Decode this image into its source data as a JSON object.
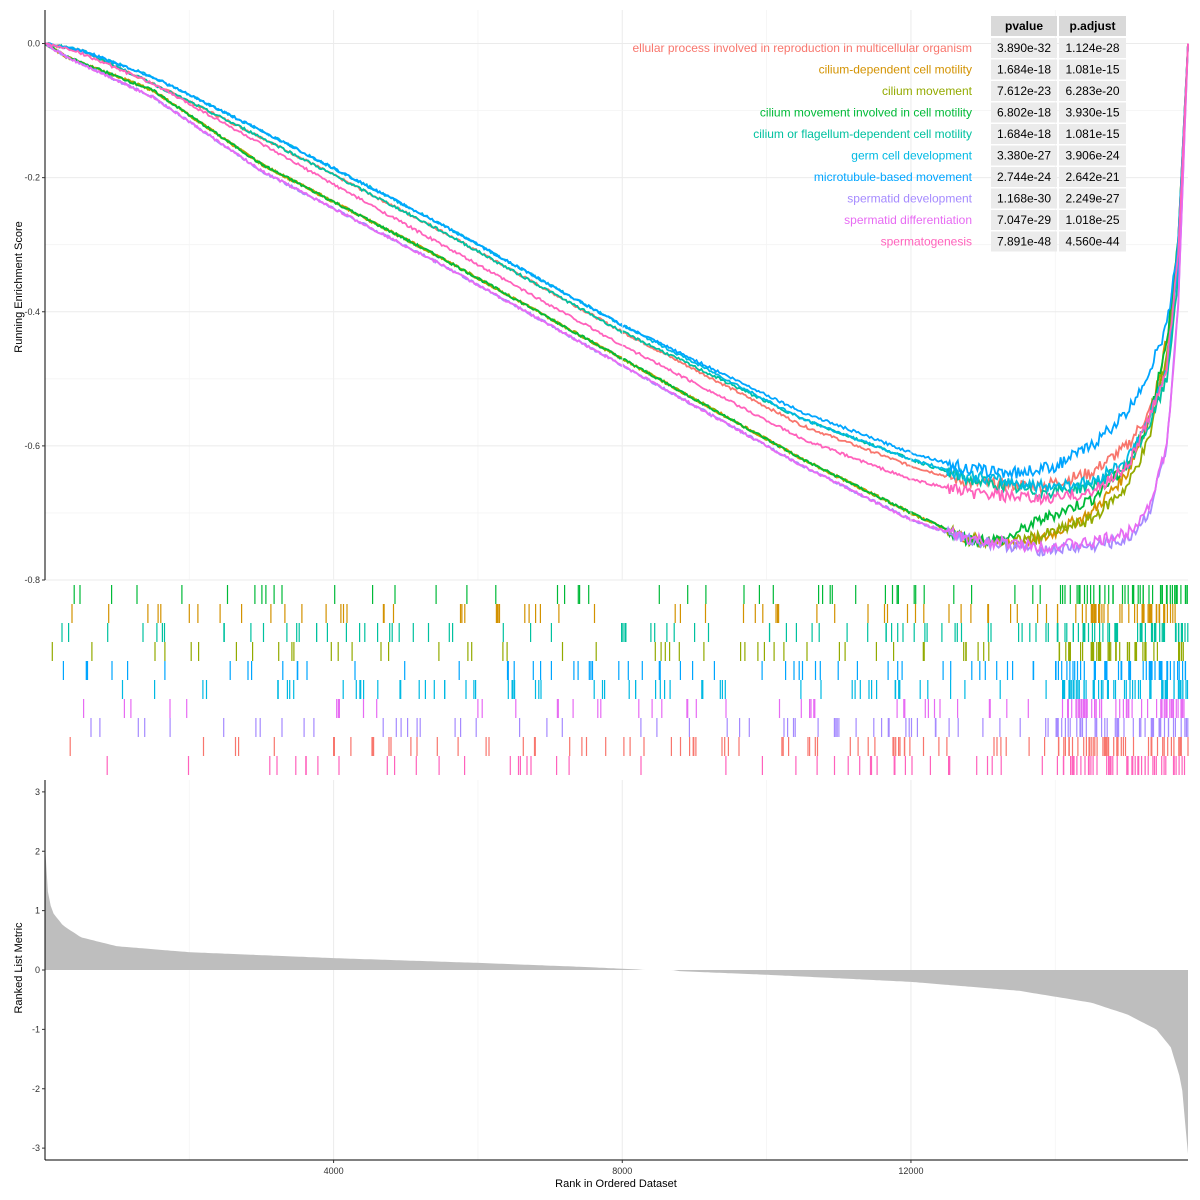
{
  "chart_data": [
    {
      "type": "line",
      "panel": "running-enrichment-score",
      "ylabel": "Running Enrichment Score",
      "xlim": [
        1,
        15839
      ],
      "ylim": [
        -0.8,
        0.05
      ],
      "x_ticks": [
        4000,
        8000,
        12000
      ],
      "x_tick_labels": [
        "4000",
        "8000",
        "12000"
      ],
      "y_ticks": [
        0.0,
        -0.2,
        -0.4,
        -0.6,
        -0.8
      ],
      "y_tick_labels": [
        "0.0",
        "-0.2",
        "-0.4",
        "-0.6",
        "-0.8"
      ],
      "grid": true,
      "legend_position": "top-right",
      "table_headers": [
        "pvalue",
        "p.adjust"
      ],
      "series": [
        {
          "name": "cellular process involved in reproduction in multicellular organism",
          "legend_text": "ellular process involved in reproduction in multicellular organism",
          "color": "#F8766D",
          "pvalue": "3.890e-32",
          "p_adjust": "1.124e-28",
          "x": [
            0,
            500,
            1500,
            3000,
            5500,
            8000,
            10500,
            12000,
            12800,
            13800,
            14500,
            15000,
            15300,
            15550,
            15700,
            15839
          ],
          "y": [
            0.0,
            -0.01,
            -0.06,
            -0.14,
            -0.28,
            -0.43,
            -0.57,
            -0.63,
            -0.655,
            -0.66,
            -0.64,
            -0.6,
            -0.55,
            -0.48,
            -0.33,
            0.0
          ]
        },
        {
          "name": "cilium-dependent cell motility",
          "color": "#D39200",
          "pvalue": "1.684e-18",
          "p_adjust": "1.081e-15",
          "x": [
            0,
            300,
            1500,
            3000,
            5500,
            8000,
            10500,
            12000,
            12800,
            13300,
            13800,
            14500,
            15000,
            15300,
            15550,
            15700,
            15839
          ],
          "y": [
            0.0,
            -0.02,
            -0.07,
            -0.18,
            -0.32,
            -0.47,
            -0.62,
            -0.7,
            -0.74,
            -0.745,
            -0.74,
            -0.7,
            -0.64,
            -0.56,
            -0.44,
            -0.3,
            0.0
          ]
        },
        {
          "name": "cilium movement",
          "color": "#93AA00",
          "pvalue": "7.612e-23",
          "p_adjust": "6.283e-20",
          "x": [
            0,
            300,
            1500,
            3000,
            5500,
            8000,
            10500,
            12000,
            12800,
            13300,
            13800,
            14500,
            15000,
            15300,
            15550,
            15700,
            15839
          ],
          "y": [
            0.0,
            -0.02,
            -0.07,
            -0.18,
            -0.32,
            -0.47,
            -0.62,
            -0.7,
            -0.74,
            -0.745,
            -0.735,
            -0.71,
            -0.66,
            -0.59,
            -0.46,
            -0.32,
            0.0
          ]
        },
        {
          "name": "cilium movement involved in cell motility",
          "color": "#00BA38",
          "pvalue": "6.802e-18",
          "p_adjust": "3.930e-15",
          "x": [
            0,
            300,
            1500,
            3000,
            5500,
            8000,
            10500,
            12000,
            12800,
            13300,
            13800,
            14500,
            15000,
            15300,
            15550,
            15700,
            15839
          ],
          "y": [
            0.0,
            -0.02,
            -0.07,
            -0.18,
            -0.32,
            -0.47,
            -0.62,
            -0.7,
            -0.74,
            -0.74,
            -0.71,
            -0.68,
            -0.63,
            -0.56,
            -0.44,
            -0.3,
            0.0
          ]
        },
        {
          "name": "cilium or flagellum-dependent cell motility",
          "color": "#00C19F",
          "pvalue": "1.684e-18",
          "p_adjust": "1.081e-15",
          "x": [
            0,
            500,
            1500,
            3000,
            5500,
            8000,
            10500,
            12000,
            12800,
            13800,
            14500,
            15000,
            15300,
            15550,
            15700,
            15839
          ],
          "y": [
            0.0,
            -0.01,
            -0.06,
            -0.14,
            -0.28,
            -0.43,
            -0.56,
            -0.62,
            -0.65,
            -0.67,
            -0.66,
            -0.63,
            -0.57,
            -0.5,
            -0.35,
            0.0
          ]
        },
        {
          "name": "germ cell development",
          "color": "#00B9E3",
          "pvalue": "3.380e-27",
          "p_adjust": "3.906e-24",
          "x": [
            0,
            500,
            1500,
            3000,
            5500,
            8000,
            10500,
            12000,
            12800,
            13800,
            14500,
            15000,
            15300,
            15550,
            15700,
            15839
          ],
          "y": [
            0.0,
            -0.01,
            -0.05,
            -0.13,
            -0.27,
            -0.42,
            -0.56,
            -0.62,
            -0.645,
            -0.66,
            -0.655,
            -0.62,
            -0.56,
            -0.48,
            -0.33,
            0.0
          ]
        },
        {
          "name": "microtubule-based movement",
          "color": "#00A5FF",
          "pvalue": "2.744e-24",
          "p_adjust": "2.642e-21",
          "x": [
            0,
            500,
            1500,
            3000,
            5500,
            8000,
            10500,
            12000,
            12800,
            13500,
            14000,
            14500,
            15000,
            15300,
            15550,
            15700,
            15839
          ],
          "y": [
            0.0,
            -0.01,
            -0.05,
            -0.13,
            -0.27,
            -0.42,
            -0.55,
            -0.61,
            -0.635,
            -0.64,
            -0.63,
            -0.6,
            -0.55,
            -0.49,
            -0.42,
            -0.3,
            0.0
          ]
        },
        {
          "name": "spermatid development",
          "color": "#A58AFF",
          "pvalue": "1.168e-30",
          "p_adjust": "2.249e-27",
          "x": [
            0,
            300,
            1500,
            3000,
            5500,
            8000,
            10500,
            12000,
            12800,
            13800,
            14500,
            15000,
            15300,
            15550,
            15700,
            15839
          ],
          "y": [
            0.0,
            -0.02,
            -0.08,
            -0.19,
            -0.33,
            -0.48,
            -0.63,
            -0.71,
            -0.74,
            -0.755,
            -0.75,
            -0.74,
            -0.7,
            -0.6,
            -0.4,
            0.0
          ]
        },
        {
          "name": "spermatid differentiation",
          "color": "#E76BF3",
          "pvalue": "7.047e-29",
          "p_adjust": "1.018e-25",
          "x": [
            0,
            300,
            1500,
            3000,
            5500,
            8000,
            10500,
            12000,
            12800,
            13800,
            14500,
            15000,
            15300,
            15550,
            15700,
            15839
          ],
          "y": [
            0.0,
            -0.02,
            -0.08,
            -0.19,
            -0.33,
            -0.48,
            -0.63,
            -0.71,
            -0.74,
            -0.75,
            -0.745,
            -0.73,
            -0.69,
            -0.6,
            -0.4,
            0.0
          ]
        },
        {
          "name": "spermatogenesis",
          "color": "#FF62BC",
          "pvalue": "7.891e-48",
          "p_adjust": "4.560e-44",
          "x": [
            0,
            400,
            1500,
            3000,
            5500,
            8000,
            10500,
            12000,
            12800,
            13800,
            14500,
            15000,
            15300,
            15550,
            15700,
            15839
          ],
          "y": [
            0.0,
            -0.01,
            -0.06,
            -0.15,
            -0.3,
            -0.45,
            -0.59,
            -0.65,
            -0.67,
            -0.68,
            -0.67,
            -0.63,
            -0.56,
            -0.48,
            -0.32,
            0.0
          ]
        }
      ]
    },
    {
      "type": "rug",
      "panel": "gene-hits",
      "xlim": [
        1,
        15839
      ],
      "rows": 10,
      "description_colors_in_row_order": [
        "#00BA38",
        "#D39200",
        "#00C19F",
        "#93AA00",
        "#00A5FF",
        "#00B9E3",
        "#E76BF3",
        "#A58AFF",
        "#F8766D",
        "#FF62BC"
      ]
    },
    {
      "type": "area",
      "panel": "ranked-list-metric",
      "xlabel": "Rank in Ordered Dataset",
      "ylabel": "Ranked List Metric",
      "xlim": [
        1,
        15839
      ],
      "ylim": [
        -3.2,
        3.2
      ],
      "x_ticks": [
        4000,
        8000,
        12000
      ],
      "x_tick_labels": [
        "4000",
        "8000",
        "12000"
      ],
      "y_ticks": [
        3,
        2,
        1,
        0,
        -1,
        -2,
        -3
      ],
      "y_tick_labels": [
        "3",
        "2",
        "1",
        "0",
        "-1",
        "-2",
        "-3"
      ],
      "color": "#BEBEBE",
      "x": [
        1,
        20,
        60,
        120,
        250,
        500,
        1000,
        2000,
        4000,
        6000,
        7500,
        8200,
        8300,
        8700,
        8800,
        10000,
        12000,
        13500,
        14500,
        15000,
        15400,
        15600,
        15750,
        15839
      ],
      "y": [
        2.1,
        1.5,
        1.15,
        0.95,
        0.75,
        0.55,
        0.4,
        0.3,
        0.2,
        0.12,
        0.05,
        0.01,
        0.0,
        0.0,
        -0.02,
        -0.08,
        -0.2,
        -0.35,
        -0.55,
        -0.75,
        -1.0,
        -1.3,
        -1.9,
        -3.1
      ]
    }
  ]
}
